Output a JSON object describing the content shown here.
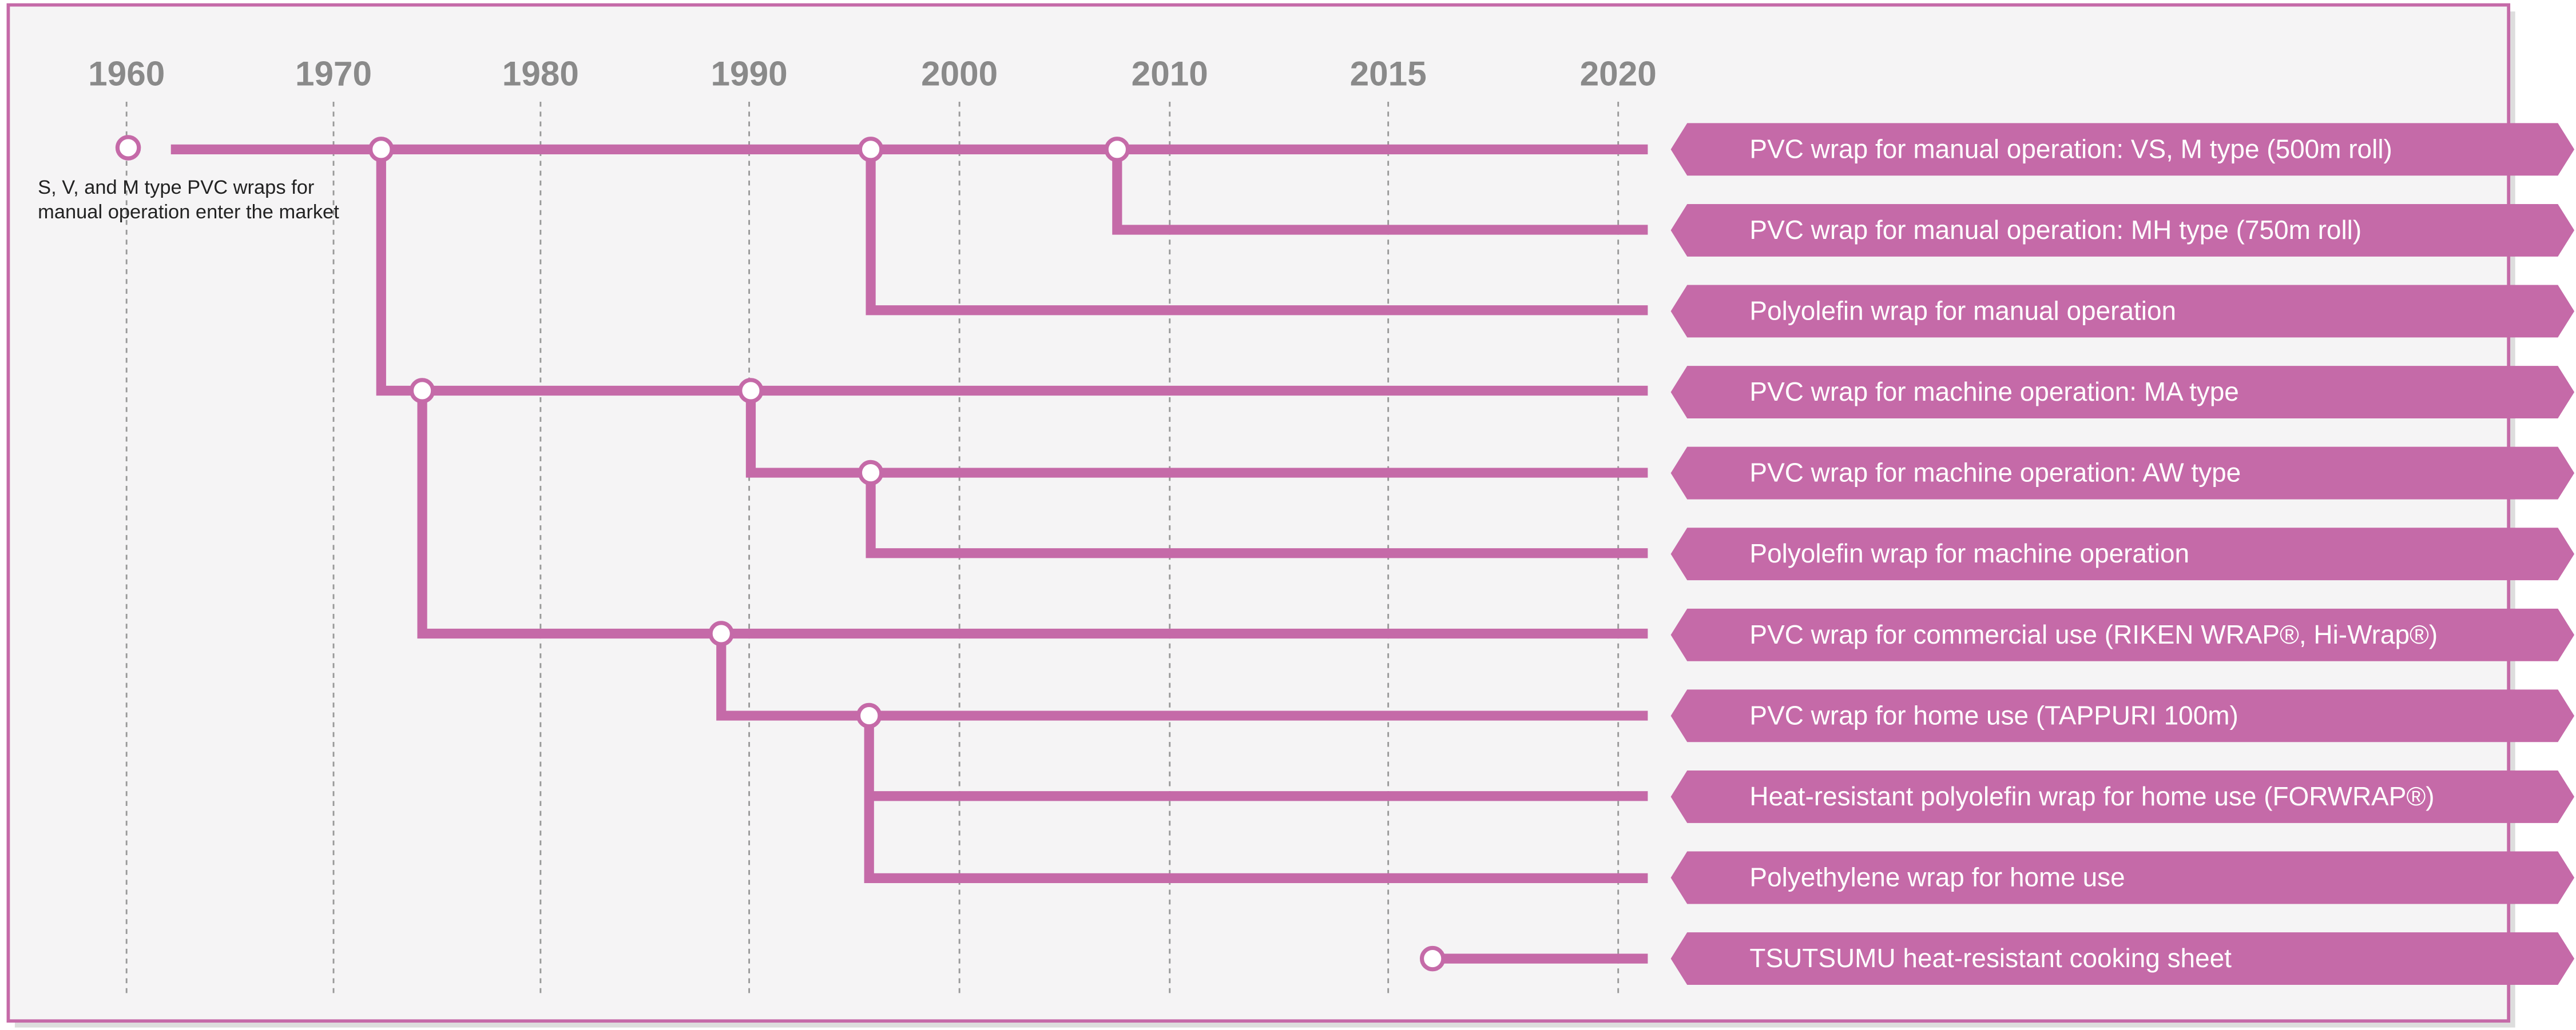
{
  "axis": {
    "years": [
      "1960",
      "1970",
      "1980",
      "1990",
      "2000",
      "2010",
      "2015",
      "2020"
    ]
  },
  "annotation": {
    "lines": [
      "S, V, and M type PVC wraps for",
      "manual operation enter the market"
    ]
  },
  "products": [
    "PVC wrap for manual operation: VS, M type (500m roll)",
    "PVC wrap for manual operation: MH type (750m roll)",
    "Polyolefin wrap for manual operation",
    "PVC wrap for machine operation: MA type",
    "PVC wrap for machine operation: AW type",
    "Polyolefin wrap for machine operation",
    "PVC wrap for commercial use (RIKEN WRAP®, Hi-Wrap®)",
    "PVC wrap for home use (TAPPURI 100m)",
    "Heat-resistant polyolefin wrap for home use (FORWRAP®)",
    "Polyethylene wrap for home use",
    "TSUTSUMU heat-resistant cooking sheet"
  ]
}
